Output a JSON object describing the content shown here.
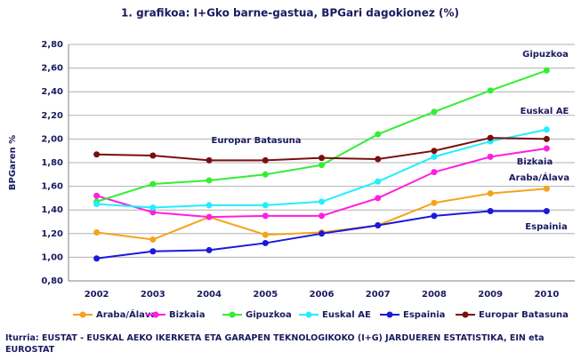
{
  "chart_data": {
    "type": "line",
    "title": "1. grafikoa: I+Gko barne-gastua, BPGari dagokionez (%)",
    "y_label": "BPGaren %",
    "categories": [
      "2002",
      "2003",
      "2004",
      "2005",
      "2006",
      "2007",
      "2008",
      "2009",
      "2010"
    ],
    "series": [
      {
        "name": "Araba/Álava",
        "color": "#f7a21b",
        "values": [
          1.21,
          1.15,
          1.34,
          1.19,
          1.21,
          1.27,
          1.46,
          1.54,
          1.58
        ]
      },
      {
        "name": "Bizkaia",
        "color": "#ff1fe0",
        "values": [
          1.52,
          1.38,
          1.34,
          1.35,
          1.35,
          1.5,
          1.72,
          1.85,
          1.92
        ]
      },
      {
        "name": "Gipuzkoa",
        "color": "#33ee33",
        "values": [
          1.47,
          1.62,
          1.65,
          1.7,
          1.78,
          2.04,
          2.23,
          2.41,
          2.58
        ]
      },
      {
        "name": "Euskal AE",
        "color": "#22eeff",
        "values": [
          1.45,
          1.42,
          1.44,
          1.44,
          1.47,
          1.64,
          1.85,
          1.98,
          2.08
        ]
      },
      {
        "name": "Espainia",
        "color": "#1a1ad8",
        "values": [
          0.99,
          1.05,
          1.06,
          1.12,
          1.2,
          1.27,
          1.35,
          1.39,
          1.39
        ]
      },
      {
        "name": "Europar Batasuna",
        "color": "#7a0f0f",
        "values": [
          1.87,
          1.86,
          1.82,
          1.82,
          1.84,
          1.83,
          1.9,
          2.01,
          2.0
        ]
      }
    ],
    "ylim": [
      0.8,
      2.8
    ],
    "yticks": [
      {
        "value": 0.8,
        "label": "0,80"
      },
      {
        "value": 1.0,
        "label": "1,00"
      },
      {
        "value": 1.2,
        "label": "1,20"
      },
      {
        "value": 1.4,
        "label": "1,40"
      },
      {
        "value": 1.6,
        "label": "1,60"
      },
      {
        "value": 1.8,
        "label": "1,80"
      },
      {
        "value": 2.0,
        "label": "2,00"
      },
      {
        "value": 2.2,
        "label": "2,20"
      },
      {
        "value": 2.4,
        "label": "2,40"
      },
      {
        "value": 2.6,
        "label": "2,60"
      },
      {
        "value": 2.8,
        "label": "2,80"
      }
    ],
    "grid": true,
    "legend": "bottom",
    "annotations": [
      "Gipuzkoa",
      "Euskal AE",
      "Europar Batasuna",
      "Bizkaia",
      "Araba/Álava",
      "Espainia"
    ],
    "source": "Iturria: EUSTAT - EUSKAL AEKO IKERKETA ETA GARAPEN TEKNOLOGIKOKO (I+G) JARDUEREN ESTATISTIKA, EIN eta EUROSTAT"
  }
}
